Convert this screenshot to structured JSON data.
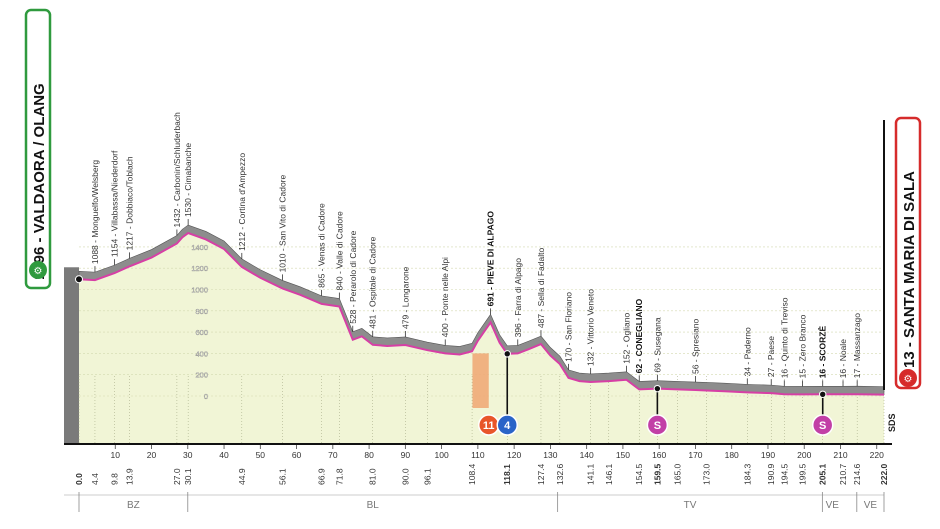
{
  "chart_data": {
    "type": "area",
    "title": "",
    "xlabel": "",
    "ylabel": "",
    "xlim": [
      0,
      222
    ],
    "ylim": [
      -200,
      1600
    ],
    "start": {
      "label": "1096 - VALDAORA / OLANG",
      "color": "#2f9a3e"
    },
    "finish": {
      "label": "13 - SANTA MARIA DI SALA",
      "color": "#d62b2b"
    },
    "x_ticks": [
      "10",
      "20",
      "30",
      "40",
      "50",
      "60",
      "70",
      "80",
      "90",
      "100",
      "110",
      "120",
      "130",
      "140",
      "150",
      "160",
      "170",
      "180",
      "190",
      "200",
      "210",
      "220"
    ],
    "y_ticks": [
      "1400",
      "1200",
      "1000",
      "800",
      "600",
      "400",
      "200",
      "0"
    ],
    "km_marks": [
      "0.0",
      "4.4",
      "9.8",
      "13.9",
      "27.0",
      "30.1",
      "44.9",
      "56.1",
      "66.9",
      "71.8",
      "81.0",
      "90.0",
      "96.1",
      "108.4",
      "118.1",
      "127.4",
      "132.6",
      "141.1",
      "146.1",
      "154.5",
      "159.5",
      "165.0",
      "173.0",
      "184.3",
      "190.9",
      "194.5",
      "199.5",
      "205.1",
      "210.7",
      "214.6",
      "222.0"
    ],
    "bold_km": [
      "0.0",
      "118.1",
      "159.5",
      "205.1",
      "222.0"
    ],
    "regions": [
      {
        "label": "BZ",
        "from": 0,
        "to": 30
      },
      {
        "label": "BL",
        "from": 30,
        "to": 132
      },
      {
        "label": "TV",
        "from": 132,
        "to": 205
      },
      {
        "label": "VE",
        "from": 205,
        "to": 210.5
      },
      {
        "label": "VE",
        "from": 214.5,
        "to": 222
      }
    ],
    "places": [
      {
        "km": 0.0,
        "label": ""
      },
      {
        "km": 4.4,
        "label": "1088 - Monguelfo/Welsberg"
      },
      {
        "km": 9.8,
        "label": "1154 - Villabassa/Niederdorf"
      },
      {
        "km": 13.9,
        "label": "1217 - Dobbiaco/Toblach"
      },
      {
        "km": 27.0,
        "label": "1432 - Carbonin/Schluderbach"
      },
      {
        "km": 30.1,
        "label": "1530 - Cimabanche"
      },
      {
        "km": 44.9,
        "label": "1212 - Cortina d'Ampezzo"
      },
      {
        "km": 56.1,
        "label": "1010 - San Vito di Cadore"
      },
      {
        "km": 66.9,
        "label": "865 - Venas di Cadore"
      },
      {
        "km": 71.8,
        "label": "840 - Valle di Cadore"
      },
      {
        "km": 75.5,
        "label": "528 - Perarolo di Cadore"
      },
      {
        "km": 81.0,
        "label": "481 - Ospitale di Cadore"
      },
      {
        "km": 90.0,
        "label": "479 - Longarone"
      },
      {
        "km": 101.0,
        "label": "400 - Ponte nelle Alpi"
      },
      {
        "km": 113.5,
        "label": "691 - PIEVE DI ALPAGO"
      },
      {
        "km": 121.0,
        "label": "396 - Farra di Alpago"
      },
      {
        "km": 127.4,
        "label": "487 - Sella di Fadalto"
      },
      {
        "km": 135.0,
        "label": "170 - San Floriano"
      },
      {
        "km": 141.1,
        "label": "132 - Vittorio Veneto"
      },
      {
        "km": 151.0,
        "label": "152 - Ogliano"
      },
      {
        "km": 154.5,
        "label": "62 - CONEGLIANO"
      },
      {
        "km": 159.5,
        "label": "69 - Susegana"
      },
      {
        "km": 170.0,
        "label": "56 - Spresiano"
      },
      {
        "km": 184.3,
        "label": "34 - Paderno"
      },
      {
        "km": 190.9,
        "label": "27 - Paese"
      },
      {
        "km": 194.5,
        "label": "16 - Quinto di Treviso"
      },
      {
        "km": 199.5,
        "label": "15 - Zero Branco"
      },
      {
        "km": 205.1,
        "label": "16 - SCORZÈ"
      },
      {
        "km": 210.7,
        "label": "16 - Noale"
      },
      {
        "km": 214.6,
        "label": "17 - Massanzago"
      }
    ],
    "bold_places": [
      "691 - PIEVE DI ALPAGO",
      "62 - CONEGLIANO",
      "16 - SCORZÈ"
    ],
    "markers": [
      {
        "km": 113,
        "type": "flag-icon",
        "label": "11",
        "color": "#e8552a"
      },
      {
        "km": 118.1,
        "type": "climb-icon",
        "label": "4",
        "color": "#2a64c8"
      },
      {
        "km": 159.5,
        "type": "sprint-icon",
        "label": "S",
        "color": "#c23fa6"
      },
      {
        "km": 205.1,
        "type": "sprint-icon",
        "label": "S",
        "color": "#c23fa6"
      }
    ],
    "finish_code": "SDS",
    "profile": [
      [
        0,
        1096
      ],
      [
        4.4,
        1088
      ],
      [
        9.8,
        1154
      ],
      [
        13.9,
        1217
      ],
      [
        20,
        1300
      ],
      [
        27,
        1432
      ],
      [
        28.5,
        1490
      ],
      [
        30.1,
        1530
      ],
      [
        35,
        1470
      ],
      [
        40,
        1380
      ],
      [
        44.9,
        1212
      ],
      [
        50,
        1110
      ],
      [
        56.1,
        1010
      ],
      [
        61,
        950
      ],
      [
        66.9,
        865
      ],
      [
        71.8,
        840
      ],
      [
        75.5,
        528
      ],
      [
        78,
        560
      ],
      [
        81,
        481
      ],
      [
        85,
        470
      ],
      [
        90,
        479
      ],
      [
        96.1,
        430
      ],
      [
        101,
        400
      ],
      [
        105,
        390
      ],
      [
        108.4,
        420
      ],
      [
        110,
        520
      ],
      [
        113.5,
        691
      ],
      [
        116,
        500
      ],
      [
        118.1,
        396
      ],
      [
        121,
        400
      ],
      [
        124,
        440
      ],
      [
        127.4,
        487
      ],
      [
        130,
        380
      ],
      [
        132.6,
        300
      ],
      [
        135,
        170
      ],
      [
        138,
        140
      ],
      [
        141.1,
        132
      ],
      [
        146.1,
        140
      ],
      [
        151,
        152
      ],
      [
        154.5,
        62
      ],
      [
        159.5,
        69
      ],
      [
        165,
        62
      ],
      [
        170,
        56
      ],
      [
        173,
        52
      ],
      [
        178,
        45
      ],
      [
        184.3,
        34
      ],
      [
        190.9,
        27
      ],
      [
        194.5,
        16
      ],
      [
        199.5,
        15
      ],
      [
        205.1,
        16
      ],
      [
        210.7,
        16
      ],
      [
        214.6,
        17
      ],
      [
        222,
        13
      ]
    ]
  }
}
